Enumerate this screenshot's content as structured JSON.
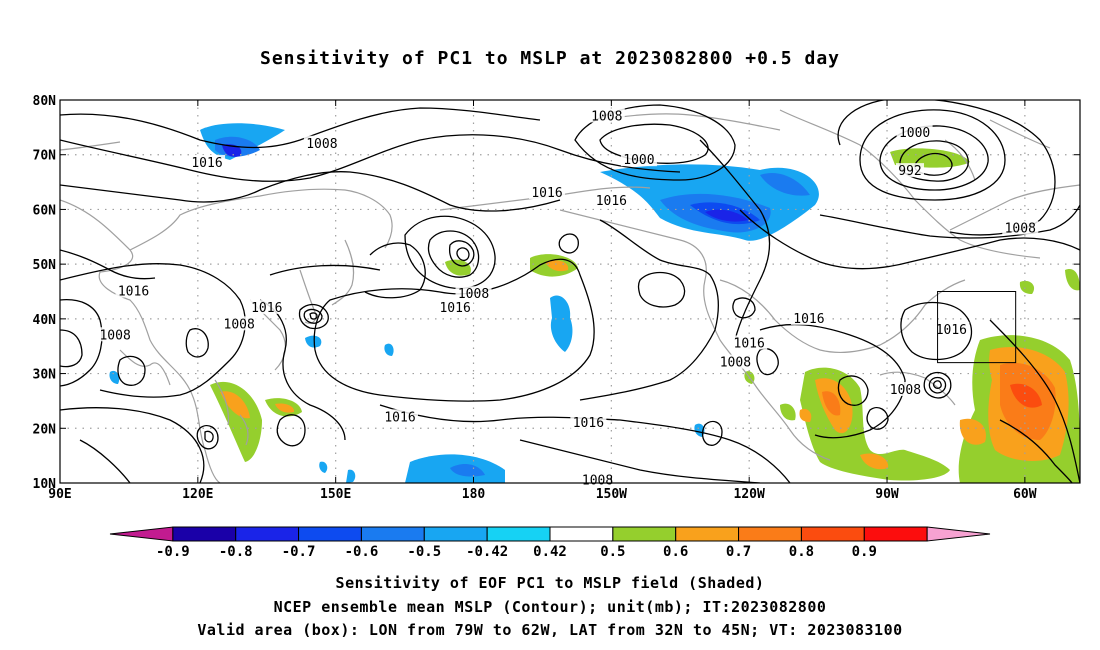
{
  "title": "Sensitivity of PC1 to MSLP at 2023082800 +0.5 day",
  "map": {
    "lat_labels": [
      "80N",
      "70N",
      "60N",
      "50N",
      "40N",
      "30N",
      "20N",
      "10N"
    ],
    "lon_labels": [
      "90E",
      "120E",
      "150E",
      "180",
      "150W",
      "120W",
      "90W",
      "60W"
    ],
    "extent": {
      "lon_min": 90,
      "lon_max": 312,
      "lat_min": 10,
      "lat_max": 80
    },
    "contour_labels": [
      {
        "text": "1008",
        "lon": 147,
        "lat": 72
      },
      {
        "text": "1016",
        "lon": 122,
        "lat": 68.5
      },
      {
        "text": "1008",
        "lon": 209,
        "lat": 77
      },
      {
        "text": "1000",
        "lon": 216,
        "lat": 69
      },
      {
        "text": "1016",
        "lon": 196,
        "lat": 63
      },
      {
        "text": "1016",
        "lon": 210,
        "lat": 61.5
      },
      {
        "text": "1000",
        "lon": 276,
        "lat": 74
      },
      {
        "text": "992",
        "lon": 275,
        "lat": 67
      },
      {
        "text": "1008",
        "lon": 299,
        "lat": 56.5
      },
      {
        "text": "1016",
        "lon": 106,
        "lat": 45
      },
      {
        "text": "1016",
        "lon": 135,
        "lat": 42
      },
      {
        "text": "1008",
        "lon": 129,
        "lat": 39
      },
      {
        "text": "1008",
        "lon": 102,
        "lat": 37
      },
      {
        "text": "1008",
        "lon": 180,
        "lat": 44.5
      },
      {
        "text": "1016",
        "lon": 176,
        "lat": 42
      },
      {
        "text": "1016",
        "lon": 164,
        "lat": 22
      },
      {
        "text": "1016",
        "lon": 205,
        "lat": 21
      },
      {
        "text": "1016",
        "lon": 253,
        "lat": 40
      },
      {
        "text": "1016",
        "lon": 240,
        "lat": 35.5
      },
      {
        "text": "1008",
        "lon": 237,
        "lat": 32
      },
      {
        "text": "1016",
        "lon": 284,
        "lat": 38
      },
      {
        "text": "1008",
        "lon": 274,
        "lat": 27
      },
      {
        "text": "1008",
        "lon": 207,
        "lat": 10.5
      }
    ],
    "box": {
      "lon_min": -79,
      "lon_max": -62,
      "lat_min": 32,
      "lat_max": 45
    },
    "colors": {
      "contour": "#000000",
      "coastline": "#a0a0a0",
      "grid": "#a0a0a0"
    }
  },
  "colorbar": {
    "labels": [
      "-0.9",
      "-0.8",
      "-0.7",
      "-0.6",
      "-0.5",
      "-0.42",
      "0.42",
      "0.5",
      "0.6",
      "0.7",
      "0.8",
      "0.9"
    ],
    "colors": [
      "#c21b90",
      "#1a00a8",
      "#1a24e8",
      "#0d4bf0",
      "#1a7bf0",
      "#18a6f2",
      "#16d2f4",
      "#ffffff",
      "#95cf2d",
      "#f9a11c",
      "#fa7c18",
      "#fb4c0f",
      "#fc0d0d",
      "#f7a2d2"
    ]
  },
  "footer": {
    "line1": "Sensitivity of EOF PC1 to MSLP field (Shaded)",
    "line2": "NCEP ensemble mean MSLP (Contour); unit(mb); IT:2023082800",
    "line3": "Valid area (box): LON from 79W to 62W, LAT from 32N to 45N; VT: 2023083100"
  }
}
